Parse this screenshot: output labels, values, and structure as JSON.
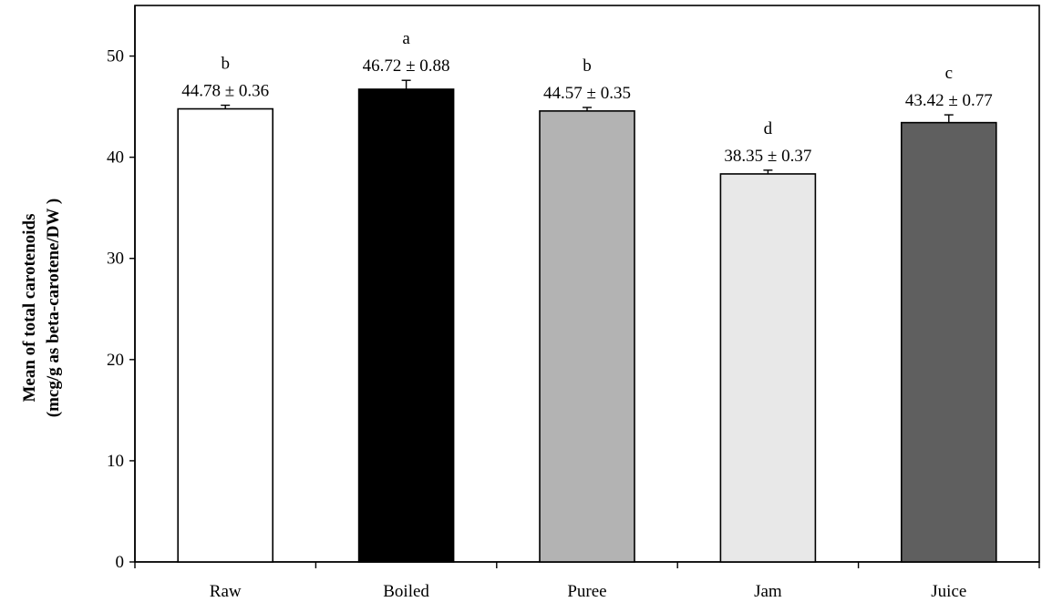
{
  "chart_data": {
    "type": "bar",
    "title": "",
    "categories": [
      "Raw",
      "Boiled",
      "Puree",
      "Jam",
      "Juice"
    ],
    "values": [
      44.78,
      46.72,
      44.57,
      38.35,
      43.42
    ],
    "errors": [
      0.36,
      0.88,
      0.35,
      0.37,
      0.77
    ],
    "value_labels": [
      "44.78 ± 0.36",
      "46.72 ± 0.88",
      "44.57 ± 0.35",
      "38.35 ± 0.37",
      "43.42 ± 0.77"
    ],
    "significance_letters": [
      "b",
      "a",
      "b",
      "d",
      "c"
    ],
    "bar_colors": [
      "#ffffff",
      "#000000",
      "#b3b3b3",
      "#e8e8e8",
      "#5f5f5f"
    ],
    "ylabel_lines": [
      "Mean of total carotenoids",
      "(mcg/g as beta-carotene/DW )"
    ],
    "xlabel": "",
    "ylim": [
      0,
      55
    ],
    "yticks": [
      0,
      10,
      20,
      30,
      40,
      50
    ],
    "grid": false,
    "legend": "none"
  }
}
